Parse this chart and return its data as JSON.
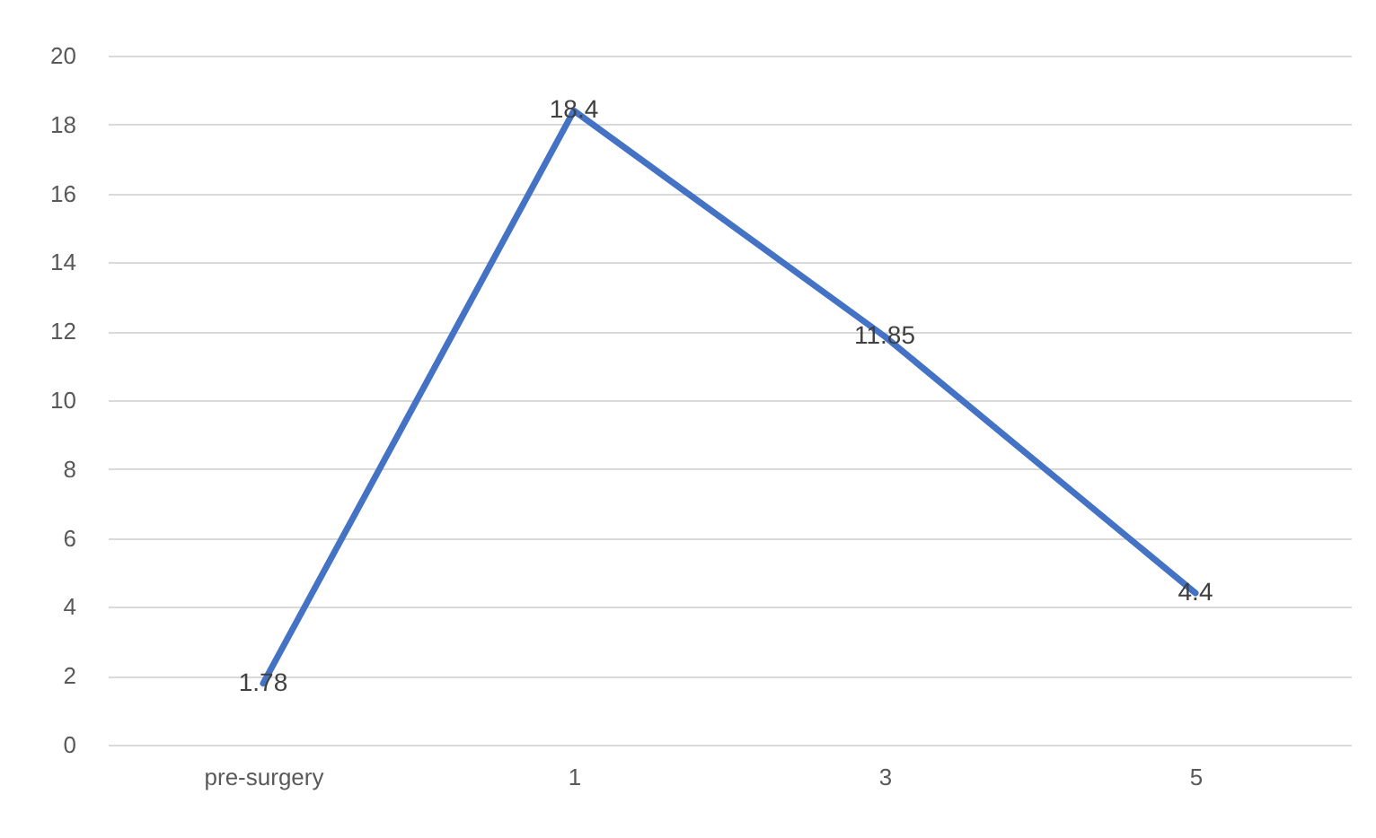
{
  "chart_data": {
    "type": "line",
    "categories": [
      "pre-surgery",
      "1",
      "3",
      "5"
    ],
    "values": [
      1.78,
      18.4,
      11.85,
      4.4
    ],
    "color": "#4472c4",
    "ylim": [
      0,
      20
    ],
    "yticks": [
      0,
      2,
      4,
      6,
      8,
      10,
      12,
      14,
      16,
      18,
      20
    ],
    "grid": "y",
    "data_labels": true,
    "marker": "none"
  }
}
